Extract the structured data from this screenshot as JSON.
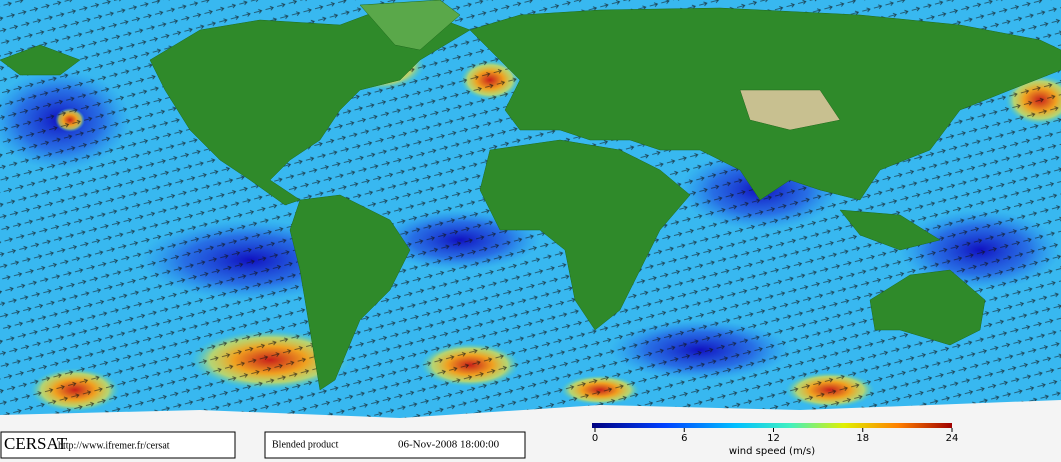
{
  "footer": {
    "source": "CERSAT",
    "url": "http://www.ifremer.fr/cersat",
    "product": "Blended product",
    "timestamp": "06-Nov-2008 18:00:00"
  },
  "colorbar": {
    "label": "wind speed (m/s)",
    "lim": [
      0,
      24
    ],
    "ticks": [
      0,
      6,
      12,
      18,
      24
    ]
  }
}
